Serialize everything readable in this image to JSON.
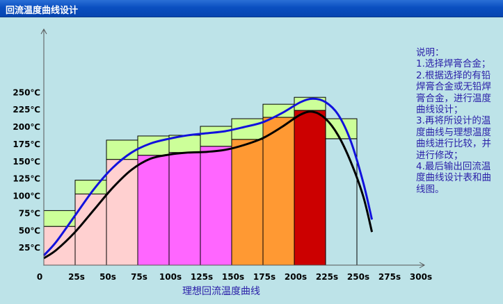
{
  "window": {
    "title": "回流温度曲线设计"
  },
  "notes": [
    "说明：",
    "1.选择焊膏合金；",
    "2.根据选择的有铅焊膏合金或无铅焊膏合金，进行温度曲线设计；",
    "3.再将所设计的温度曲线与理想温度曲线进行比较，并进行修改；",
    "4.最后输出回流温度曲线设计表和曲线图。"
  ],
  "chart_data": {
    "type": "bar",
    "xlabel": "理想回流温度曲线",
    "ylabel": "",
    "x_ticks": [
      "0",
      "25s",
      "50s",
      "75s",
      "100s",
      "125s",
      "150s",
      "175s",
      "200s",
      "225s",
      "250s",
      "275s",
      "300s"
    ],
    "y_ticks": [
      "25℃",
      "50℃",
      "75℃",
      "100℃",
      "125℃",
      "150℃",
      "175℃",
      "200℃",
      "225℃",
      "250℃"
    ],
    "xlim": [
      0,
      300
    ],
    "ylim": [
      0,
      250
    ],
    "bars": [
      {
        "x0": 0,
        "x1": 25,
        "low": 56,
        "high": 79,
        "color": "#ffd0d0"
      },
      {
        "x0": 25,
        "x1": 50,
        "low": 103,
        "high": 123,
        "color": "#ffd0d0"
      },
      {
        "x0": 50,
        "x1": 75,
        "low": 153,
        "high": 181,
        "color": "#ffd0d0"
      },
      {
        "x0": 75,
        "x1": 100,
        "low": 159,
        "high": 187,
        "color": "#ff66ff"
      },
      {
        "x0": 100,
        "x1": 125,
        "low": 163,
        "high": 188,
        "color": "#ff66ff"
      },
      {
        "x0": 125,
        "x1": 150,
        "low": 172,
        "high": 201,
        "color": "#ff66ff"
      },
      {
        "x0": 150,
        "x1": 175,
        "low": 182,
        "high": 212,
        "color": "#ff9933"
      },
      {
        "x0": 175,
        "x1": 200,
        "low": 214,
        "high": 233,
        "color": "#ff9933"
      },
      {
        "x0": 200,
        "x1": 225,
        "low": 224,
        "high": 243,
        "color": "#cc0000"
      },
      {
        "x0": 225,
        "x1": 250,
        "low": 183,
        "high": 212,
        "color": null
      }
    ],
    "band_color": "#ccff99",
    "series": [
      {
        "color": "#1111dd",
        "x": [
          0,
          10,
          25,
          40,
          55,
          70,
          85,
          100,
          115,
          130,
          145,
          160,
          175,
          190,
          205,
          215,
          225,
          235,
          245,
          255,
          262
        ],
        "y": [
          14,
          34,
          72,
          110,
          141,
          163,
          176,
          183,
          188,
          191,
          194,
          200,
          207,
          220,
          236,
          241,
          236,
          218,
          180,
          120,
          66
        ]
      },
      {
        "color": "#000000",
        "x": [
          0,
          10,
          25,
          40,
          55,
          70,
          85,
          100,
          115,
          130,
          145,
          160,
          175,
          190,
          205,
          215,
          225,
          235,
          245,
          255,
          262
        ],
        "y": [
          10,
          22,
          48,
          80,
          112,
          138,
          154,
          160,
          163,
          164,
          167,
          174,
          184,
          200,
          218,
          222,
          212,
          188,
          150,
          100,
          48
        ]
      }
    ]
  }
}
